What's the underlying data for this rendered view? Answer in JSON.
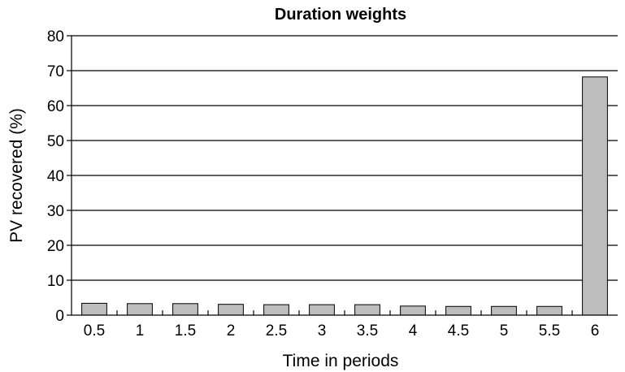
{
  "chart_data": {
    "type": "bar",
    "title": "Duration weights",
    "xlabel": "Time in periods",
    "ylabel": "PV recovered (%)",
    "categories": [
      "0.5",
      "1",
      "1.5",
      "2",
      "2.5",
      "3",
      "3.5",
      "4",
      "4.5",
      "5",
      "5.5",
      "6"
    ],
    "values": [
      3.4,
      3.3,
      3.3,
      3.1,
      3.0,
      3.0,
      3.0,
      2.6,
      2.5,
      2.5,
      2.5,
      68.2
    ],
    "ylim": [
      0,
      80
    ],
    "yticks": [
      0,
      10,
      20,
      30,
      40,
      50,
      60,
      70,
      80
    ],
    "grid": true,
    "bar_color": "#bdbdbd",
    "legend": "none"
  }
}
